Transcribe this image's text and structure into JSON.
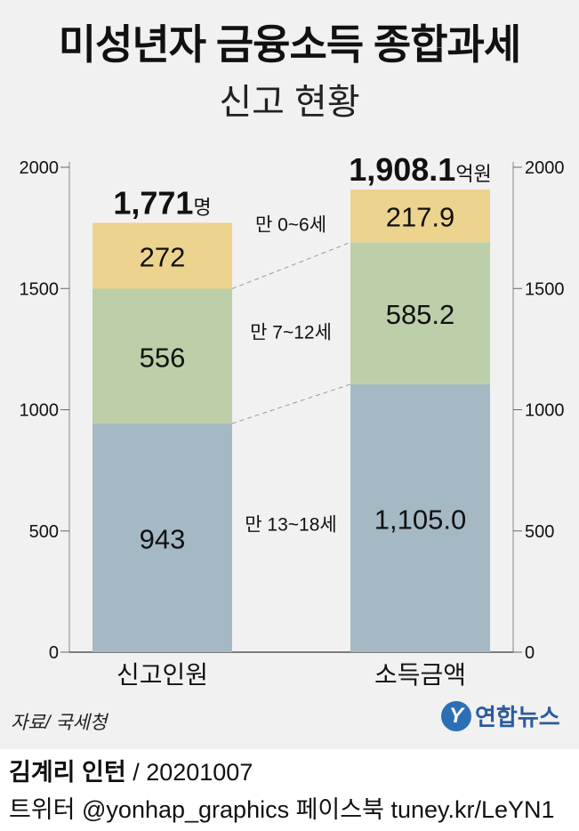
{
  "header": {
    "title": "미성년자 금융소득 종합과세",
    "subtitle": "신고 현황"
  },
  "chart_data": {
    "type": "bar",
    "stacked": true,
    "categories": [
      "신고인원",
      "소득금액"
    ],
    "series": [
      {
        "name": "만 13~18세",
        "values": [
          943,
          1105.0
        ],
        "labels": [
          "943",
          "1,105.0"
        ],
        "color": "#a5b9c4"
      },
      {
        "name": "만 7~12세",
        "values": [
          556,
          585.2
        ],
        "labels": [
          "556",
          "585.2"
        ],
        "color": "#bccfa9"
      },
      {
        "name": "만 0~6세",
        "values": [
          272,
          217.9
        ],
        "labels": [
          "272",
          "217.9"
        ],
        "color": "#ecd38e"
      }
    ],
    "totals": [
      {
        "value": "1,771",
        "unit": "명"
      },
      {
        "value": "1,908.1",
        "unit": "억원"
      }
    ],
    "left_axis_ticks": [
      "2000",
      "1500",
      "1000",
      "500",
      "0"
    ],
    "right_axis_ticks": [
      "2000",
      "1500",
      "1000",
      "500",
      "0"
    ],
    "ylim": [
      0,
      2000
    ],
    "grid": false
  },
  "footer": {
    "source": "자료/ 국세청",
    "logo_mark": "Y",
    "logo_name": "연합뉴스",
    "author": "김계리 인턴",
    "date": " / 20201007",
    "social": "트위터 @yonhap_graphics  페이스북 tuney.kr/LeYN1"
  }
}
